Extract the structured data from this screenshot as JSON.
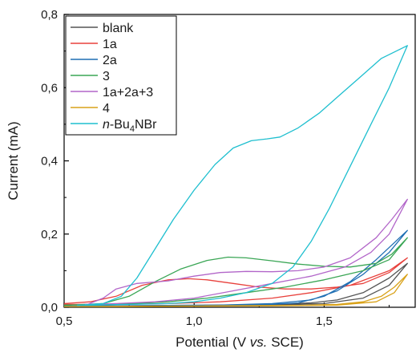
{
  "chart_data": {
    "type": "line",
    "title": "",
    "xlabel_parts": [
      "Potential (V ",
      "vs.",
      " SCE)"
    ],
    "ylabel": "Current (mA)",
    "xlim": [
      0.5,
      1.85
    ],
    "ylim": [
      0.0,
      0.8
    ],
    "xticks": [
      "0,5",
      "1,0",
      "1,5"
    ],
    "xtick_values": [
      0.5,
      1.0,
      1.5
    ],
    "yticks": [
      "0,0",
      "0,2",
      "0,4",
      "0,6",
      "0,8"
    ],
    "ytick_values": [
      0.0,
      0.2,
      0.4,
      0.6,
      0.8
    ],
    "grid": false,
    "legend_position": "top-left",
    "series": [
      {
        "name": "blank",
        "color": "#555555",
        "points": [
          [
            0.5,
            0.003
          ],
          [
            0.7,
            0.004
          ],
          [
            0.9,
            0.005
          ],
          [
            1.1,
            0.006
          ],
          [
            1.3,
            0.008
          ],
          [
            1.45,
            0.012
          ],
          [
            1.55,
            0.02
          ],
          [
            1.65,
            0.04
          ],
          [
            1.75,
            0.08
          ],
          [
            1.82,
            0.12
          ],
          [
            1.75,
            0.06
          ],
          [
            1.65,
            0.025
          ],
          [
            1.5,
            0.01
          ],
          [
            1.3,
            0.006
          ],
          [
            1.1,
            0.004
          ],
          [
            0.9,
            0.003
          ],
          [
            0.7,
            0.002
          ],
          [
            0.5,
            0.002
          ]
        ]
      },
      {
        "name": "1a",
        "color": "#e8413c",
        "points": [
          [
            0.5,
            0.01
          ],
          [
            0.6,
            0.015
          ],
          [
            0.7,
            0.03
          ],
          [
            0.8,
            0.06
          ],
          [
            0.9,
            0.075
          ],
          [
            0.98,
            0.078
          ],
          [
            1.05,
            0.075
          ],
          [
            1.15,
            0.065
          ],
          [
            1.25,
            0.055
          ],
          [
            1.35,
            0.05
          ],
          [
            1.45,
            0.05
          ],
          [
            1.55,
            0.055
          ],
          [
            1.65,
            0.065
          ],
          [
            1.75,
            0.095
          ],
          [
            1.82,
            0.135
          ],
          [
            1.75,
            0.1
          ],
          [
            1.6,
            0.06
          ],
          [
            1.45,
            0.04
          ],
          [
            1.3,
            0.025
          ],
          [
            1.1,
            0.015
          ],
          [
            0.9,
            0.01
          ],
          [
            0.7,
            0.008
          ],
          [
            0.5,
            0.008
          ]
        ]
      },
      {
        "name": "2a",
        "color": "#1f6fb4",
        "points": [
          [
            0.5,
            0.003
          ],
          [
            0.7,
            0.004
          ],
          [
            0.9,
            0.005
          ],
          [
            1.1,
            0.006
          ],
          [
            1.3,
            0.008
          ],
          [
            1.4,
            0.012
          ],
          [
            1.5,
            0.03
          ],
          [
            1.6,
            0.07
          ],
          [
            1.7,
            0.13
          ],
          [
            1.82,
            0.21
          ],
          [
            1.75,
            0.15
          ],
          [
            1.65,
            0.09
          ],
          [
            1.55,
            0.045
          ],
          [
            1.45,
            0.02
          ],
          [
            1.3,
            0.01
          ],
          [
            1.1,
            0.006
          ],
          [
            0.9,
            0.004
          ],
          [
            0.7,
            0.003
          ],
          [
            0.5,
            0.003
          ]
        ]
      },
      {
        "name": "3",
        "color": "#3aa655",
        "points": [
          [
            0.5,
            0.005
          ],
          [
            0.65,
            0.01
          ],
          [
            0.75,
            0.03
          ],
          [
            0.85,
            0.07
          ],
          [
            0.95,
            0.105
          ],
          [
            1.05,
            0.128
          ],
          [
            1.13,
            0.137
          ],
          [
            1.2,
            0.135
          ],
          [
            1.3,
            0.127
          ],
          [
            1.4,
            0.118
          ],
          [
            1.5,
            0.112
          ],
          [
            1.6,
            0.11
          ],
          [
            1.7,
            0.12
          ],
          [
            1.76,
            0.145
          ],
          [
            1.82,
            0.19
          ],
          [
            1.75,
            0.13
          ],
          [
            1.65,
            0.1
          ],
          [
            1.5,
            0.075
          ],
          [
            1.35,
            0.055
          ],
          [
            1.2,
            0.04
          ],
          [
            1.05,
            0.025
          ],
          [
            0.9,
            0.015
          ],
          [
            0.7,
            0.008
          ],
          [
            0.5,
            0.006
          ]
        ]
      },
      {
        "name": "1a+2a+3",
        "color": "#b266c9",
        "points": [
          [
            0.58,
            0.005
          ],
          [
            0.65,
            0.025
          ],
          [
            0.7,
            0.05
          ],
          [
            0.78,
            0.065
          ],
          [
            0.9,
            0.072
          ],
          [
            1.0,
            0.085
          ],
          [
            1.1,
            0.095
          ],
          [
            1.2,
            0.098
          ],
          [
            1.3,
            0.097
          ],
          [
            1.4,
            0.1
          ],
          [
            1.5,
            0.11
          ],
          [
            1.6,
            0.135
          ],
          [
            1.7,
            0.19
          ],
          [
            1.76,
            0.24
          ],
          [
            1.82,
            0.295
          ],
          [
            1.75,
            0.2
          ],
          [
            1.68,
            0.15
          ],
          [
            1.58,
            0.11
          ],
          [
            1.45,
            0.085
          ],
          [
            1.3,
            0.065
          ],
          [
            1.15,
            0.045
          ],
          [
            1.0,
            0.025
          ],
          [
            0.85,
            0.015
          ],
          [
            0.7,
            0.01
          ],
          [
            0.58,
            0.008
          ]
        ]
      },
      {
        "name": "4",
        "color": "#d9a21a",
        "points": [
          [
            0.5,
            0.002
          ],
          [
            0.8,
            0.003
          ],
          [
            1.1,
            0.004
          ],
          [
            1.4,
            0.005
          ],
          [
            1.55,
            0.008
          ],
          [
            1.65,
            0.015
          ],
          [
            1.72,
            0.03
          ],
          [
            1.77,
            0.055
          ],
          [
            1.82,
            0.09
          ],
          [
            1.77,
            0.04
          ],
          [
            1.7,
            0.015
          ],
          [
            1.55,
            0.006
          ],
          [
            1.3,
            0.004
          ],
          [
            1.0,
            0.003
          ],
          [
            0.7,
            0.002
          ],
          [
            0.5,
            0.002
          ]
        ]
      },
      {
        "name_parts": [
          "n",
          "-Bu",
          "4",
          "NBr"
        ],
        "color": "#1fbfcf",
        "points": [
          [
            0.55,
            0.005
          ],
          [
            0.65,
            0.01
          ],
          [
            0.72,
            0.03
          ],
          [
            0.78,
            0.08
          ],
          [
            0.85,
            0.16
          ],
          [
            0.92,
            0.24
          ],
          [
            1.0,
            0.32
          ],
          [
            1.08,
            0.39
          ],
          [
            1.15,
            0.435
          ],
          [
            1.22,
            0.455
          ],
          [
            1.28,
            0.46
          ],
          [
            1.33,
            0.465
          ],
          [
            1.4,
            0.49
          ],
          [
            1.48,
            0.53
          ],
          [
            1.56,
            0.58
          ],
          [
            1.64,
            0.63
          ],
          [
            1.72,
            0.68
          ],
          [
            1.82,
            0.715
          ],
          [
            1.75,
            0.6
          ],
          [
            1.68,
            0.5
          ],
          [
            1.6,
            0.385
          ],
          [
            1.52,
            0.27
          ],
          [
            1.45,
            0.18
          ],
          [
            1.38,
            0.11
          ],
          [
            1.3,
            0.065
          ],
          [
            1.2,
            0.04
          ],
          [
            1.1,
            0.025
          ],
          [
            1.0,
            0.015
          ],
          [
            0.9,
            0.01
          ],
          [
            0.75,
            0.008
          ],
          [
            0.6,
            0.006
          ],
          [
            0.55,
            0.006
          ]
        ]
      }
    ]
  }
}
